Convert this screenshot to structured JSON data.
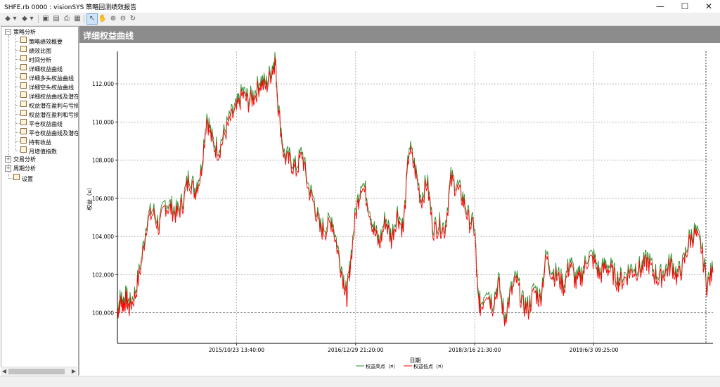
{
  "window": {
    "title": "SHFE.rb 0000 : visionSYS 策略回测绩效报告",
    "minimize": "—",
    "maximize": "☐",
    "close": "✕"
  },
  "toolbar": {
    "icons": [
      "back-icon",
      "dropdown-icon",
      "forward-icon",
      "dropdown-icon",
      "save-icon",
      "export-icon",
      "print-icon",
      "preview-icon",
      "pointer-icon",
      "pan-icon",
      "zoom-in-icon",
      "zoom-out-icon",
      "reset-icon"
    ]
  },
  "tree": {
    "groups": [
      {
        "label": "策略分析",
        "expanded": true,
        "items": [
          "策略绩效概要",
          "绩效比图",
          "时间分析",
          "详细权益曲线",
          "详细多头权益曲线",
          "详细空头权益曲线",
          "详细权益曲线及潜在",
          "权益潜在盈利与亏损",
          "权益潜在盈利和亏损",
          "平仓权益曲线",
          "平仓权益曲线及潜在",
          "持有收益",
          "月增值指数"
        ]
      },
      {
        "label": "交易分析",
        "expanded": false,
        "items": []
      },
      {
        "label": "周期分析",
        "expanded": false,
        "items": []
      }
    ],
    "settings_label": "设置"
  },
  "panel": {
    "header": "详细权益曲线"
  },
  "chart_data": {
    "type": "line",
    "title": "",
    "xlabel": "日期",
    "ylabel": "权益（¤）",
    "x_ticks": [
      "2015/10/23 13:40:00",
      "2016/12/29 21:20:00",
      "2018/3/16 21:30:00",
      "2019/6/3 09:25:00"
    ],
    "y_ticks": [
      "100,000",
      "102,000",
      "104,000",
      "106,000",
      "108,000",
      "110,000",
      "112,000"
    ],
    "ylim": [
      98400,
      113700
    ],
    "grid": true,
    "baseline": 100000,
    "legend_position": "bottom",
    "series": [
      {
        "name": "权益高点（¤）",
        "color": "#2e8b2e"
      },
      {
        "name": "权益低点（¤）",
        "color": "#ff0000",
        "points": [
          [
            0,
            100000
          ],
          [
            0.5,
            100600
          ],
          [
            1,
            100400
          ],
          [
            1.5,
            100700
          ],
          [
            2,
            100200
          ],
          [
            3,
            100900
          ],
          [
            4,
            102500
          ],
          [
            5,
            104800
          ],
          [
            6,
            105200
          ],
          [
            7,
            104400
          ],
          [
            8,
            105600
          ],
          [
            9,
            105400
          ],
          [
            10,
            105100
          ],
          [
            11,
            105700
          ],
          [
            12,
            107000
          ],
          [
            13,
            106300
          ],
          [
            14,
            107200
          ],
          [
            15,
            110200
          ],
          [
            16,
            108800
          ],
          [
            17,
            108400
          ],
          [
            18,
            109300
          ],
          [
            19,
            110100
          ],
          [
            20,
            110600
          ],
          [
            21,
            111400
          ],
          [
            22,
            111000
          ],
          [
            23,
            111300
          ],
          [
            24,
            112000
          ],
          [
            25,
            111800
          ],
          [
            26,
            112700
          ],
          [
            26.5,
            113200
          ],
          [
            27,
            110700
          ],
          [
            28,
            108100
          ],
          [
            29,
            107900
          ],
          [
            30,
            107400
          ],
          [
            31,
            108300
          ],
          [
            32,
            106500
          ],
          [
            33,
            105700
          ],
          [
            34,
            104300
          ],
          [
            35,
            104300
          ],
          [
            36,
            104800
          ],
          [
            37,
            103200
          ],
          [
            38,
            101600
          ],
          [
            38.5,
            100700
          ],
          [
            39,
            102200
          ],
          [
            40,
            105100
          ],
          [
            41,
            106800
          ],
          [
            42,
            105800
          ],
          [
            43,
            104300
          ],
          [
            44,
            103500
          ],
          [
            45,
            104800
          ],
          [
            46,
            103800
          ],
          [
            47,
            105100
          ],
          [
            48,
            104300
          ],
          [
            49,
            108600
          ],
          [
            50,
            107400
          ],
          [
            51,
            105800
          ],
          [
            52,
            106800
          ],
          [
            53,
            104300
          ],
          [
            54,
            104500
          ],
          [
            55,
            104300
          ],
          [
            56,
            106900
          ],
          [
            57,
            106500
          ],
          [
            58,
            105900
          ],
          [
            59,
            104800
          ],
          [
            60,
            104300
          ],
          [
            60.5,
            100800
          ],
          [
            61,
            100200
          ],
          [
            62,
            101200
          ],
          [
            63,
            100300
          ],
          [
            64,
            101500
          ],
          [
            65,
            99600
          ],
          [
            66,
            100900
          ],
          [
            67,
            101700
          ],
          [
            68,
            100400
          ],
          [
            69,
            100100
          ],
          [
            70,
            101100
          ],
          [
            71,
            100600
          ],
          [
            72,
            102900
          ],
          [
            73,
            102000
          ],
          [
            74,
            101800
          ],
          [
            75,
            101300
          ],
          [
            76,
            102600
          ],
          [
            77,
            101500
          ],
          [
            78,
            101900
          ],
          [
            79,
            102800
          ],
          [
            80,
            102700
          ],
          [
            81,
            101900
          ],
          [
            82,
            102400
          ],
          [
            83,
            102100
          ],
          [
            84,
            101600
          ],
          [
            85,
            101700
          ],
          [
            86,
            102100
          ],
          [
            87,
            102200
          ],
          [
            88,
            102200
          ],
          [
            89,
            102700
          ],
          [
            90,
            102000
          ],
          [
            91,
            101700
          ],
          [
            92,
            102100
          ],
          [
            93,
            102500
          ],
          [
            94,
            101800
          ],
          [
            95,
            102400
          ],
          [
            96,
            103700
          ],
          [
            97,
            104100
          ],
          [
            98,
            103400
          ],
          [
            99,
            101400
          ],
          [
            100,
            102100
          ]
        ]
      }
    ]
  }
}
